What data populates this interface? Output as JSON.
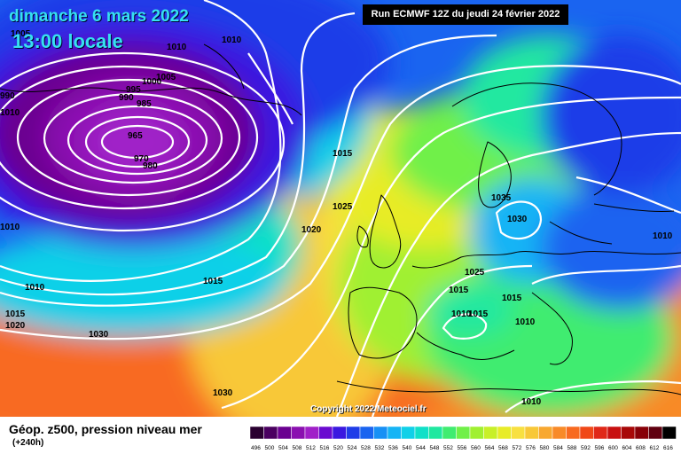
{
  "header": {
    "date": "dimanche 6 mars 2022",
    "time": "13:00 locale",
    "run": "Run ECMWF 12Z du jeudi 24 février 2022"
  },
  "footer": {
    "copyright": "Copyright 2022 Meteociel.fr",
    "title": "Géop. z500, pression niveau mer",
    "forecast_hour": "(+240h)"
  },
  "legend": {
    "values": [
      "496",
      "500",
      "504",
      "508",
      "512",
      "516",
      "520",
      "524",
      "528",
      "532",
      "536",
      "540",
      "544",
      "548",
      "552",
      "556",
      "560",
      "564",
      "568",
      "572",
      "576",
      "580",
      "584",
      "588",
      "592",
      "596",
      "600",
      "604",
      "608",
      "612",
      "616"
    ],
    "colors": [
      "#2a0030",
      "#4a0060",
      "#6a0090",
      "#8a10b0",
      "#a020c8",
      "#6a0bd0",
      "#3a18e0",
      "#1f3ce8",
      "#1a64f0",
      "#1890f5",
      "#16b4f5",
      "#10d0e8",
      "#10e0c8",
      "#20e8a0",
      "#40ec70",
      "#70f048",
      "#a0f030",
      "#c8f028",
      "#e8ec28",
      "#f8e040",
      "#f8c838",
      "#f8a830",
      "#f88a28",
      "#f86a20",
      "#f04818",
      "#e02818",
      "#c81010",
      "#a80808",
      "#880008",
      "#600010",
      "#000000"
    ]
  },
  "isobar_labels": [
    {
      "text": "1005"
    },
    {
      "text": "1010"
    },
    {
      "text": "1010"
    },
    {
      "text": "1005"
    },
    {
      "text": "1000"
    },
    {
      "text": "995"
    },
    {
      "text": "990"
    },
    {
      "text": "985"
    },
    {
      "text": "965"
    },
    {
      "text": "970"
    },
    {
      "text": "980"
    },
    {
      "text": "990"
    },
    {
      "text": "1010"
    },
    {
      "text": "1010"
    },
    {
      "text": "1015"
    },
    {
      "text": "1015"
    },
    {
      "text": "1020"
    },
    {
      "text": "1030"
    },
    {
      "text": "1030"
    },
    {
      "text": "1015"
    },
    {
      "text": "1025"
    },
    {
      "text": "1020"
    },
    {
      "text": "1015"
    },
    {
      "text": "1035"
    },
    {
      "text": "1030"
    },
    {
      "text": "1010"
    },
    {
      "text": "1025"
    },
    {
      "text": "1015"
    },
    {
      "text": "1015"
    },
    {
      "text": "1010"
    },
    {
      "text": "1010"
    },
    {
      "text": "1010"
    },
    {
      "text": "1010"
    }
  ]
}
